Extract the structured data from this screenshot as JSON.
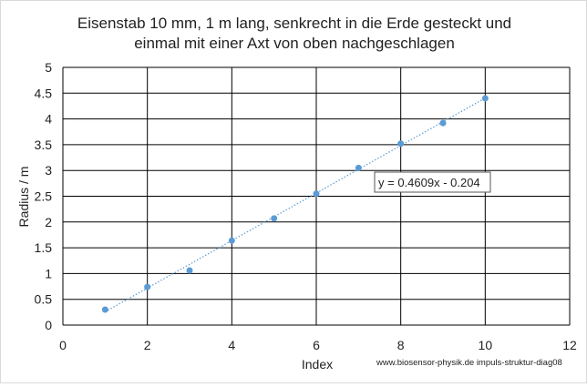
{
  "chart_data": {
    "type": "scatter",
    "title_line1": "Eisenstab 10 mm, 1 m lang, senkrecht in die Erde gesteckt und",
    "title_line2": "einmal mit einer Axt von oben nachgeschlagen",
    "xlabel": "Index",
    "ylabel": "Radius / m",
    "xlim": [
      0,
      12
    ],
    "ylim": [
      0,
      5
    ],
    "xticks": [
      "0",
      "2",
      "4",
      "6",
      "8",
      "10",
      "12"
    ],
    "yticks": [
      "0",
      "0.5",
      "1",
      "1.5",
      "2",
      "2.5",
      "3",
      "3.5",
      "4",
      "4.5",
      "5"
    ],
    "grid": true,
    "series": [
      {
        "x": [
          1,
          2,
          3,
          4,
          5,
          6,
          7,
          8,
          9,
          10
        ],
        "y": [
          0.3,
          0.74,
          1.06,
          1.64,
          2.07,
          2.55,
          3.05,
          3.52,
          3.92,
          4.4
        ],
        "color": "#5b9bd5"
      }
    ],
    "trendline": {
      "slope": 0.4609,
      "intercept": -0.204,
      "x_range": [
        1,
        10
      ],
      "style": "dotted",
      "color": "#5b9bd5"
    },
    "trendline_label": "y = 0.4609x - 0.204",
    "credit": "www.biosensor-physik.de   impuls-struktur-diag08"
  }
}
